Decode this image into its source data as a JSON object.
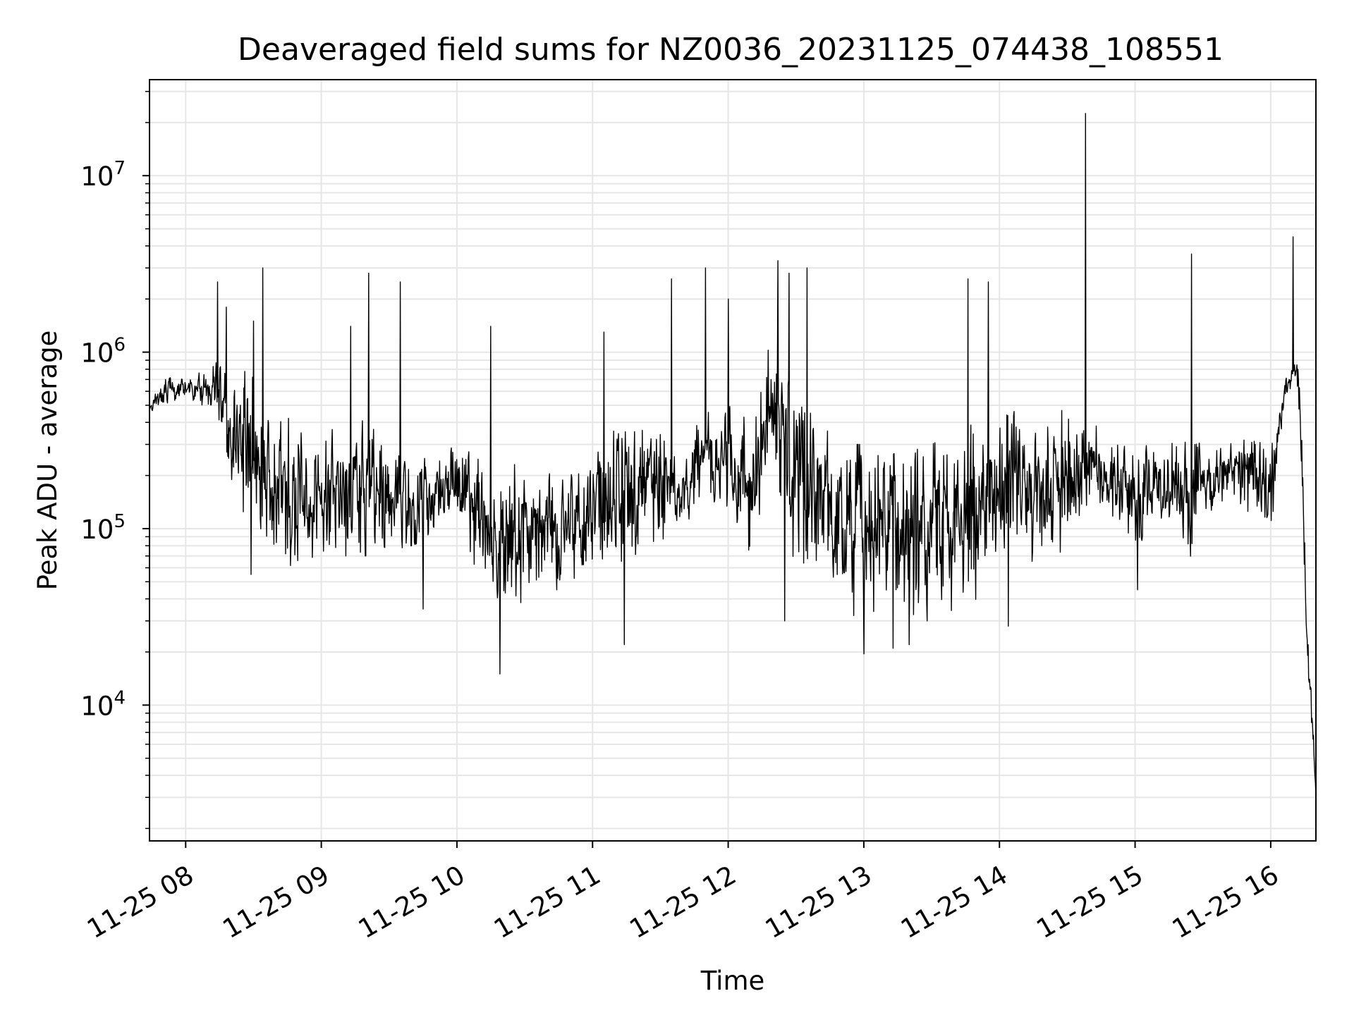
{
  "chart_data": {
    "type": "line",
    "title": "Deaveraged field sums for NZ0036_20231125_074438_108551",
    "xlabel": "Time",
    "ylabel": "Peak ADU - average",
    "yscale": "log",
    "xlim": [
      "2023-11-25 07:44",
      "2023-11-25 16:20"
    ],
    "ylim": [
      1700,
      35000000
    ],
    "grid": true,
    "line_color": "#000000",
    "x_ticks": [
      {
        "at": "2023-11-25 08:00",
        "label": "11-25 08"
      },
      {
        "at": "2023-11-25 09:00",
        "label": "11-25 09"
      },
      {
        "at": "2023-11-25 10:00",
        "label": "11-25 10"
      },
      {
        "at": "2023-11-25 11:00",
        "label": "11-25 11"
      },
      {
        "at": "2023-11-25 12:00",
        "label": "11-25 12"
      },
      {
        "at": "2023-11-25 13:00",
        "label": "11-25 13"
      },
      {
        "at": "2023-11-25 14:00",
        "label": "11-25 14"
      },
      {
        "at": "2023-11-25 15:00",
        "label": "11-25 15"
      },
      {
        "at": "2023-11-25 16:00",
        "label": "11-25 16"
      }
    ],
    "y_ticks": [
      {
        "value": 10000,
        "base": "10",
        "exp": "4"
      },
      {
        "value": 100000,
        "base": "10",
        "exp": "5"
      },
      {
        "value": 1000000,
        "base": "10",
        "exp": "6"
      },
      {
        "value": 10000000,
        "base": "10",
        "exp": "7"
      }
    ],
    "series": [
      {
        "x": [
          "2023-11-25 07:44",
          "2023-11-25 07:50",
          "2023-11-25 08:00",
          "2023-11-25 08:10",
          "2023-11-25 08:15",
          "2023-11-25 08:20",
          "2023-11-25 08:25",
          "2023-11-25 08:30",
          "2023-11-25 08:35",
          "2023-11-25 08:40",
          "2023-11-25 08:50",
          "2023-11-25 09:00",
          "2023-11-25 09:10",
          "2023-11-25 09:20",
          "2023-11-25 09:30",
          "2023-11-25 09:40",
          "2023-11-25 09:50",
          "2023-11-25 10:00",
          "2023-11-25 10:10",
          "2023-11-25 10:20",
          "2023-11-25 10:30",
          "2023-11-25 10:40",
          "2023-11-25 10:50",
          "2023-11-25 11:00",
          "2023-11-25 11:10",
          "2023-11-25 11:20",
          "2023-11-25 11:30",
          "2023-11-25 11:40",
          "2023-11-25 11:50",
          "2023-11-25 12:00",
          "2023-11-25 12:10",
          "2023-11-25 12:20",
          "2023-11-25 12:25",
          "2023-11-25 12:30",
          "2023-11-25 12:40",
          "2023-11-25 12:50",
          "2023-11-25 13:00",
          "2023-11-25 13:10",
          "2023-11-25 13:20",
          "2023-11-25 13:30",
          "2023-11-25 13:40",
          "2023-11-25 13:50",
          "2023-11-25 14:00",
          "2023-11-25 14:10",
          "2023-11-25 14:20",
          "2023-11-25 14:30",
          "2023-11-25 14:40",
          "2023-11-25 14:50",
          "2023-11-25 15:00",
          "2023-11-25 15:10",
          "2023-11-25 15:20",
          "2023-11-25 15:25",
          "2023-11-25 15:30",
          "2023-11-25 15:40",
          "2023-11-25 15:50",
          "2023-11-25 16:00",
          "2023-11-25 16:05",
          "2023-11-25 16:10",
          "2023-11-25 16:13",
          "2023-11-25 16:16",
          "2023-11-25 16:20"
        ],
        "low": [
          430000,
          480000,
          520000,
          470000,
          400000,
          200000,
          90000,
          80000,
          70000,
          65000,
          60000,
          75000,
          70000,
          70000,
          75000,
          80000,
          90000,
          130000,
          50000,
          30000,
          40000,
          45000,
          45000,
          60000,
          50000,
          60000,
          70000,
          90000,
          150000,
          120000,
          70000,
          250000,
          60000,
          55000,
          45000,
          35000,
          30000,
          35000,
          30000,
          30000,
          35000,
          40000,
          50000,
          60000,
          70000,
          75000,
          150000,
          100000,
          70000,
          120000,
          90000,
          60000,
          110000,
          150000,
          110000,
          80000,
          400000,
          700000,
          300000,
          20000,
          2600
        ],
        "high": [
          520000,
          700000,
          750000,
          800000,
          1300000,
          600000,
          1000000,
          700000,
          500000,
          450000,
          400000,
          350000,
          450000,
          400000,
          300000,
          250000,
          250000,
          300000,
          250000,
          220000,
          240000,
          220000,
          200000,
          250000,
          400000,
          450000,
          350000,
          300000,
          450000,
          500000,
          400000,
          1500000,
          1200000,
          700000,
          400000,
          300000,
          300000,
          250000,
          300000,
          300000,
          350000,
          400000,
          550000,
          450000,
          400000,
          500000,
          400000,
          350000,
          250000,
          350000,
          300000,
          350000,
          300000,
          300000,
          350000,
          300000,
          550000,
          1100000,
          800000,
          40000,
          3500
        ],
        "spikes": [
          {
            "t": "2023-11-25 08:14",
            "y": 2500000
          },
          {
            "t": "2023-11-25 08:18",
            "y": 1800000
          },
          {
            "t": "2023-11-25 08:34",
            "y": 3000000
          },
          {
            "t": "2023-11-25 08:30",
            "y": 1500000
          },
          {
            "t": "2023-11-25 09:13",
            "y": 1400000
          },
          {
            "t": "2023-11-25 09:21",
            "y": 2800000
          },
          {
            "t": "2023-11-25 09:35",
            "y": 2500000
          },
          {
            "t": "2023-11-25 10:15",
            "y": 1400000
          },
          {
            "t": "2023-11-25 11:05",
            "y": 1300000
          },
          {
            "t": "2023-11-25 11:35",
            "y": 2600000
          },
          {
            "t": "2023-11-25 11:50",
            "y": 3000000
          },
          {
            "t": "2023-11-25 12:00",
            "y": 2000000
          },
          {
            "t": "2023-11-25 12:22",
            "y": 3300000
          },
          {
            "t": "2023-11-25 12:27",
            "y": 2800000
          },
          {
            "t": "2023-11-25 12:35",
            "y": 3000000
          },
          {
            "t": "2023-11-25 13:46",
            "y": 2600000
          },
          {
            "t": "2023-11-25 13:55",
            "y": 2500000
          },
          {
            "t": "2023-11-25 14:38",
            "y": 22500000
          },
          {
            "t": "2023-11-25 15:25",
            "y": 3600000
          },
          {
            "t": "2023-11-25 16:10",
            "y": 4500000
          }
        ],
        "dips": [
          {
            "t": "2023-11-25 08:29",
            "y": 55000
          },
          {
            "t": "2023-11-25 09:45",
            "y": 35000
          },
          {
            "t": "2023-11-25 10:19",
            "y": 15000
          },
          {
            "t": "2023-11-25 11:14",
            "y": 22000
          },
          {
            "t": "2023-11-25 12:25",
            "y": 30000
          },
          {
            "t": "2023-11-25 13:00",
            "y": 19500
          },
          {
            "t": "2023-11-25 13:13",
            "y": 21000
          },
          {
            "t": "2023-11-25 13:20",
            "y": 22000
          },
          {
            "t": "2023-11-25 14:04",
            "y": 28000
          },
          {
            "t": "2023-11-25 15:01",
            "y": 45000
          }
        ]
      }
    ]
  }
}
